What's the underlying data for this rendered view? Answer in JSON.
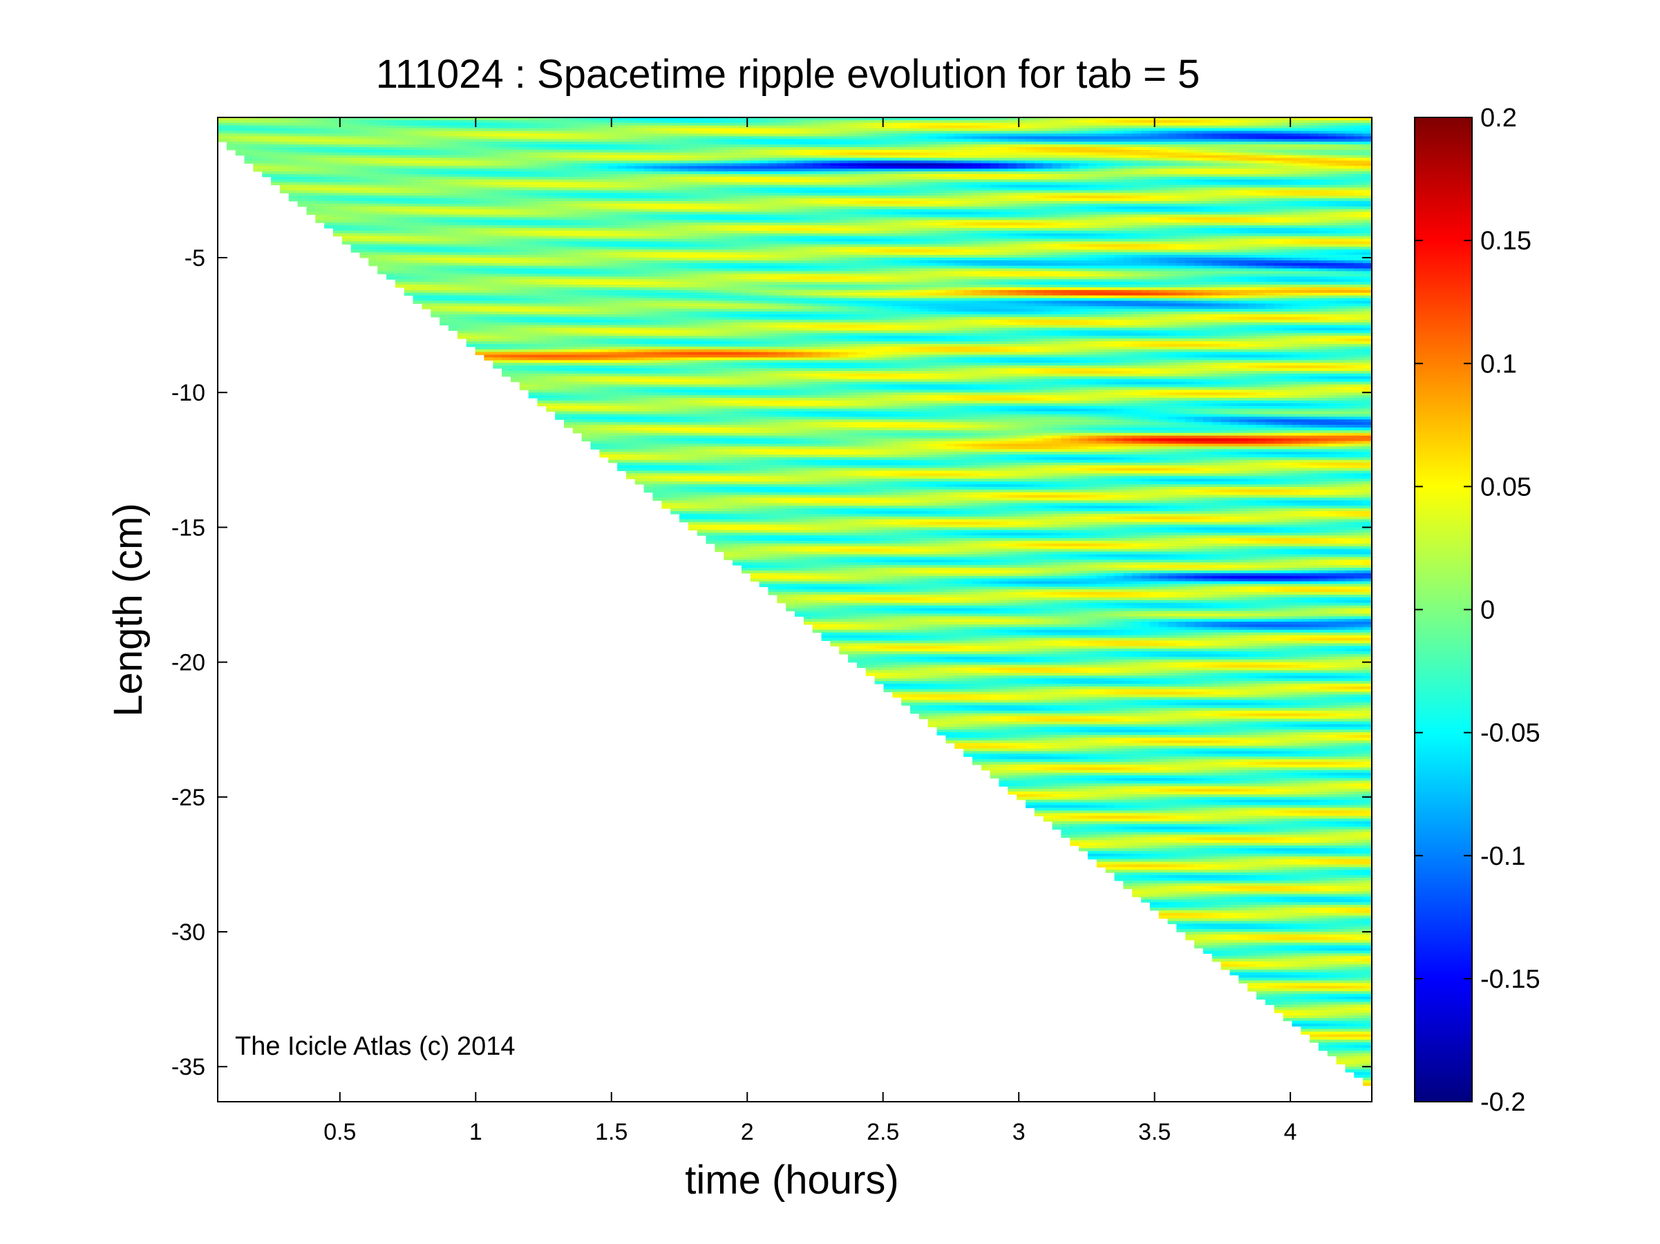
{
  "chart_data": {
    "type": "heatmap",
    "title": "111024 : Spacetime ripple evolution for tab = 5",
    "xlabel": "time (hours)",
    "ylabel": "Length (cm)",
    "xlim": [
      0.05,
      4.3
    ],
    "ylim": [
      -36.3,
      0.2
    ],
    "x_ticks": [
      0.5,
      1,
      1.5,
      2,
      2.5,
      3,
      3.5,
      4
    ],
    "x_tick_labels": [
      "0.5",
      "1",
      "1.5",
      "2",
      "2.5",
      "3",
      "3.5",
      "4"
    ],
    "y_ticks": [
      -5,
      -10,
      -15,
      -20,
      -25,
      -30,
      -35
    ],
    "y_tick_labels": [
      "-5",
      "-10",
      "-15",
      "-20",
      "-25",
      "-30",
      "-35"
    ],
    "colorbar": {
      "colormap": "jet",
      "range": [
        -0.2,
        0.2
      ],
      "ticks": [
        0.2,
        0.15,
        0.1,
        0.05,
        0,
        -0.05,
        -0.1,
        -0.15,
        -0.2
      ],
      "tick_labels": [
        "0.2",
        "0.15",
        "0.1",
        "0.05",
        "0",
        "-0.05",
        "-0.1",
        "-0.15",
        "-0.2"
      ]
    },
    "data_boundary": {
      "description_of_support": "icicle tip length grows roughly linearly with time",
      "tip_length_start_cm": -0.5,
      "tip_length_end_cm": -35.8,
      "time_start_hours": 0.05,
      "time_end_hours": 4.3
    },
    "ripple_bands": {
      "approx_spacing_cm": 0.92,
      "approx_amplitude": 0.05,
      "upward_migration_cm_over_run": 0.9,
      "peak_features": [
        {
          "length_cm": -0.6,
          "time_hours": 4.1,
          "value": -0.14
        },
        {
          "length_cm": -1.3,
          "time_hours": 3.7,
          "value": 0.11
        },
        {
          "length_cm": -1.6,
          "time_hours": 2.6,
          "value": -0.13
        },
        {
          "length_cm": -5.3,
          "time_hours": 4.2,
          "value": -0.17
        },
        {
          "length_cm": -6.3,
          "time_hours": 3.0,
          "value": 0.12
        },
        {
          "length_cm": -6.6,
          "time_hours": 2.9,
          "value": -0.13
        },
        {
          "length_cm": -8.6,
          "time_hours": 1.5,
          "value": 0.09
        },
        {
          "length_cm": -11.0,
          "time_hours": 4.0,
          "value": -0.13
        },
        {
          "length_cm": -11.7,
          "time_hours": 3.6,
          "value": 0.12
        },
        {
          "length_cm": -16.8,
          "time_hours": 4.0,
          "value": -0.1
        },
        {
          "length_cm": -18.5,
          "time_hours": 4.0,
          "value": -0.09
        }
      ]
    }
  },
  "watermark": "The Icicle Atlas (c) 2014"
}
